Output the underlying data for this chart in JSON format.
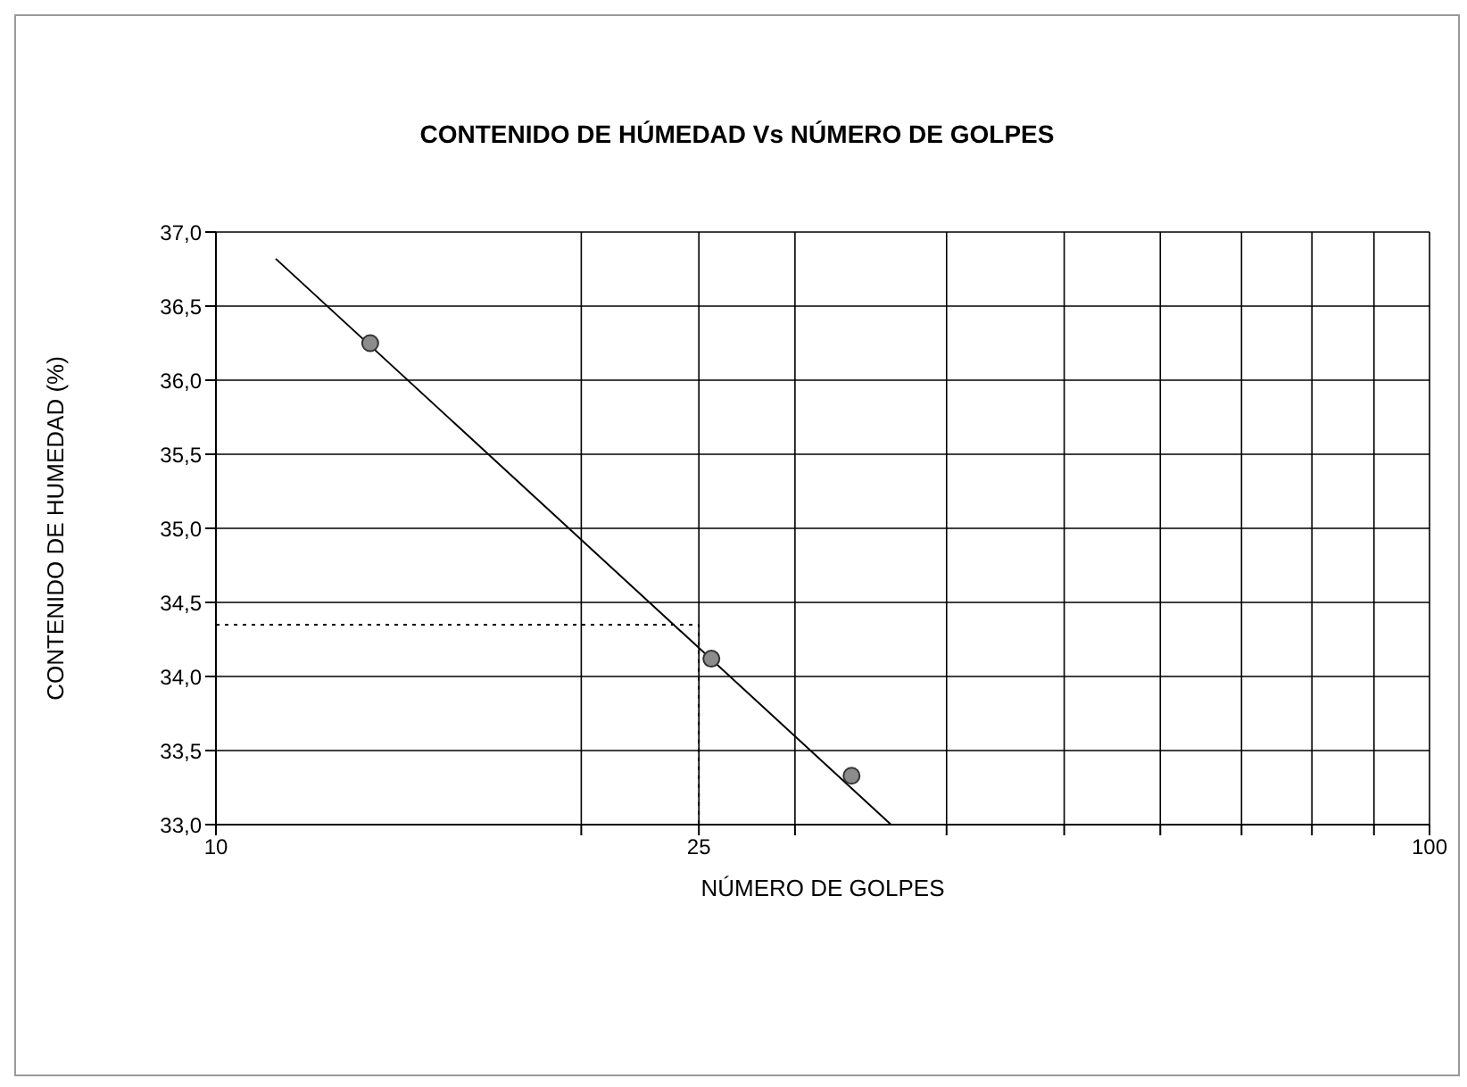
{
  "chart_data": {
    "type": "scatter",
    "title": "CONTENIDO DE HÚMEDAD Vs NÚMERO DE GOLPES",
    "xlabel": "NÚMERO DE GOLPES",
    "ylabel": "CONTENIDO DE HUMEDAD (%)",
    "log": "x",
    "grid": true,
    "legend": false,
    "marker": "circle",
    "xlim": [
      10,
      100
    ],
    "xticks": [
      10,
      {
        "value": 20,
        "label": null
      },
      25,
      {
        "value": 30,
        "label": null
      },
      {
        "value": 40,
        "label": null
      },
      {
        "value": 50,
        "label": null
      },
      {
        "value": 60,
        "label": null
      },
      {
        "value": 70,
        "label": null
      },
      {
        "value": 80,
        "label": null
      },
      {
        "value": 90,
        "label": null
      },
      100
    ],
    "ylim": [
      33,
      37
    ],
    "yticks": [
      {
        "value": 33,
        "label": "33,0"
      },
      {
        "value": 33.5,
        "label": "33,5"
      },
      {
        "value": 34,
        "label": "34,0"
      },
      {
        "value": 34.5,
        "label": "34,5"
      },
      {
        "value": 35,
        "label": "35,0"
      },
      {
        "value": 35.5,
        "label": "35,5"
      },
      {
        "value": 36,
        "label": "36,0"
      },
      {
        "value": 36.5,
        "label": "36,5"
      },
      {
        "value": 37,
        "label": "37,0"
      }
    ],
    "series": [
      {
        "color": "#8c8c8c",
        "x": [
          13.4,
          25.6,
          33.4
        ],
        "values": [
          36.25,
          34.12,
          33.33
        ]
      },
      {
        "type": "line",
        "color": "#000000",
        "marker": "none",
        "line_style": "solid",
        "x": [
          11.2,
          36
        ],
        "values": [
          36.82,
          33
        ]
      },
      {
        "type": "line",
        "color": "#000000",
        "marker": "none",
        "line_style": "dotted",
        "x": [
          10,
          25,
          25
        ],
        "values": [
          34.35,
          34.35,
          33
        ]
      }
    ]
  }
}
